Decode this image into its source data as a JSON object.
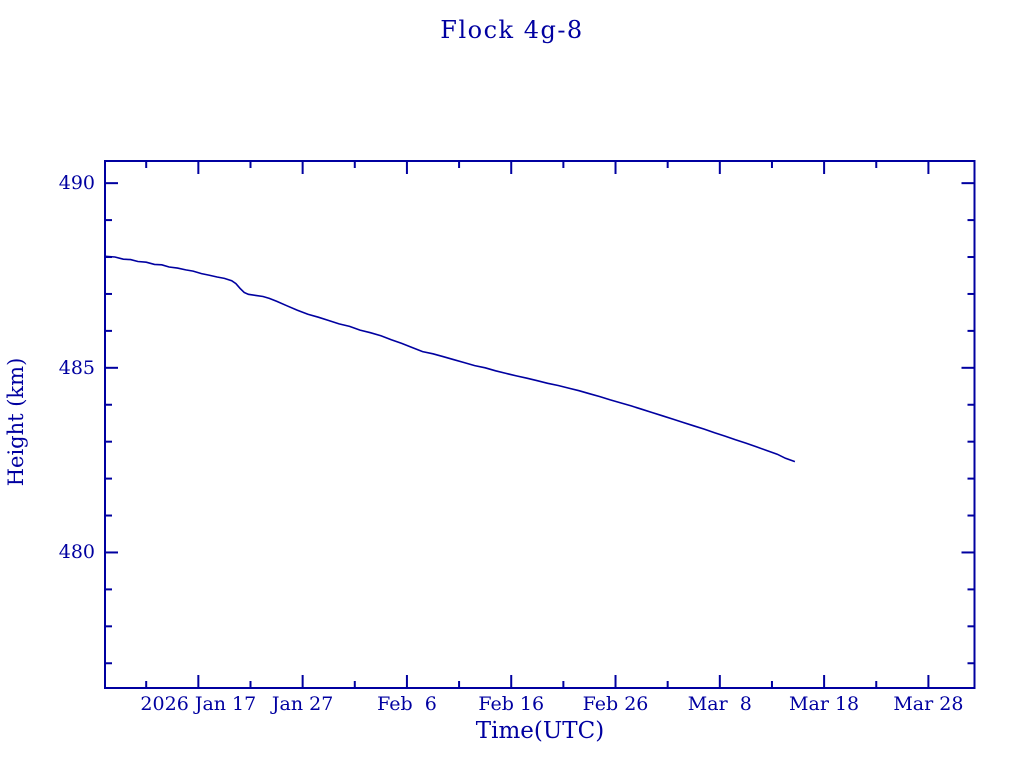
{
  "title": "Flock 4g-8",
  "colors": {
    "accent": "#0000A0",
    "background": "#FFFFFF"
  },
  "chart_data": {
    "type": "line",
    "title": "Flock 4g-8",
    "xlabel": "Time(UTC)",
    "ylabel": "Height (km)",
    "x_unit": "days since 2026 Jan 17 00:00 UTC",
    "x_range": [
      -8.95,
      74.42
    ],
    "ylim": [
      476.33,
      490.6
    ],
    "grid": false,
    "legend": false,
    "y_major_ticks": [
      {
        "value": 480,
        "label": "480"
      },
      {
        "value": 485,
        "label": "485"
      },
      {
        "value": 490,
        "label": "490"
      }
    ],
    "y_minor_step": 1,
    "x_major_ticks": [
      {
        "day": 0,
        "label": "2026 Jan 17"
      },
      {
        "day": 10,
        "label": "Jan 27"
      },
      {
        "day": 20,
        "label": "Feb  6"
      },
      {
        "day": 30,
        "label": "Feb 16"
      },
      {
        "day": 40,
        "label": "Feb 26"
      },
      {
        "day": 50,
        "label": "Mar  8"
      },
      {
        "day": 60,
        "label": "Mar 18"
      },
      {
        "day": 70,
        "label": "Mar 28"
      }
    ],
    "x_minor_step_days": 5,
    "series": [
      {
        "name": "height_km",
        "color": "#0000A0",
        "points": [
          [
            -8.95,
            488.02
          ],
          [
            -8.0,
            488.0
          ],
          [
            -7.2,
            487.94
          ],
          [
            -6.5,
            487.93
          ],
          [
            -5.8,
            487.88
          ],
          [
            -5.0,
            487.86
          ],
          [
            -4.2,
            487.8
          ],
          [
            -3.5,
            487.79
          ],
          [
            -2.8,
            487.73
          ],
          [
            -2.0,
            487.7
          ],
          [
            -1.2,
            487.65
          ],
          [
            -0.5,
            487.62
          ],
          [
            0.3,
            487.55
          ],
          [
            1.0,
            487.51
          ],
          [
            1.8,
            487.46
          ],
          [
            2.5,
            487.42
          ],
          [
            3.2,
            487.36
          ],
          [
            3.6,
            487.28
          ],
          [
            4.0,
            487.15
          ],
          [
            4.4,
            487.04
          ],
          [
            4.8,
            486.99
          ],
          [
            5.5,
            486.96
          ],
          [
            6.2,
            486.93
          ],
          [
            6.8,
            486.88
          ],
          [
            7.5,
            486.8
          ],
          [
            8.5,
            486.68
          ],
          [
            9.5,
            486.56
          ],
          [
            10.5,
            486.45
          ],
          [
            11.5,
            486.37
          ],
          [
            12.5,
            486.28
          ],
          [
            13.5,
            486.19
          ],
          [
            14.5,
            486.12
          ],
          [
            15.5,
            486.02
          ],
          [
            16.5,
            485.95
          ],
          [
            17.5,
            485.87
          ],
          [
            18.5,
            485.76
          ],
          [
            19.5,
            485.66
          ],
          [
            20.5,
            485.55
          ],
          [
            21.5,
            485.44
          ],
          [
            22.5,
            485.38
          ],
          [
            23.5,
            485.3
          ],
          [
            24.5,
            485.22
          ],
          [
            25.5,
            485.14
          ],
          [
            26.5,
            485.06
          ],
          [
            27.5,
            485.0
          ],
          [
            28.5,
            484.92
          ],
          [
            29.5,
            484.85
          ],
          [
            30.5,
            484.78
          ],
          [
            31.5,
            484.72
          ],
          [
            32.5,
            484.65
          ],
          [
            33.5,
            484.58
          ],
          [
            34.5,
            484.52
          ],
          [
            35.5,
            484.45
          ],
          [
            36.5,
            484.38
          ],
          [
            37.5,
            484.3
          ],
          [
            38.5,
            484.22
          ],
          [
            39.5,
            484.13
          ],
          [
            40.5,
            484.05
          ],
          [
            41.5,
            483.97
          ],
          [
            42.5,
            483.88
          ],
          [
            43.5,
            483.79
          ],
          [
            44.5,
            483.7
          ],
          [
            45.5,
            483.61
          ],
          [
            46.5,
            483.52
          ],
          [
            47.5,
            483.43
          ],
          [
            48.5,
            483.34
          ],
          [
            49.5,
            483.24
          ],
          [
            50.5,
            483.15
          ],
          [
            51.5,
            483.05
          ],
          [
            52.5,
            482.96
          ],
          [
            53.5,
            482.86
          ],
          [
            54.5,
            482.76
          ],
          [
            55.5,
            482.66
          ],
          [
            56.3,
            482.55
          ],
          [
            57.2,
            482.46
          ]
        ]
      }
    ]
  }
}
